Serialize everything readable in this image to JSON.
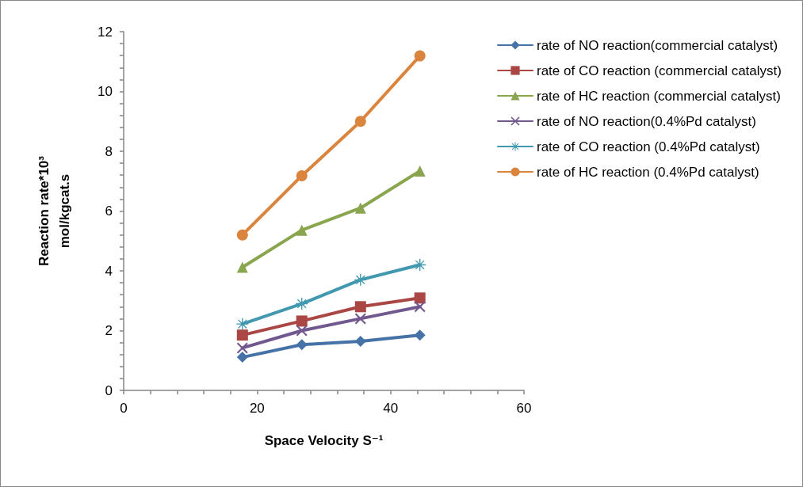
{
  "chart_data": {
    "type": "line",
    "xlabel": "Space Velocity S⁻¹",
    "ylabel": "Reaction rate*10³\nmol/kgcat.s",
    "xlim": [
      0,
      60
    ],
    "xticks": [
      0,
      {
        "value": 4,
        "label": null
      },
      {
        "value": 8,
        "label": null
      },
      {
        "value": 12,
        "label": null
      },
      {
        "value": 16,
        "label": null
      },
      20,
      {
        "value": 24,
        "label": null
      },
      {
        "value": 28,
        "label": null
      },
      {
        "value": 32,
        "label": null
      },
      {
        "value": 36,
        "label": null
      },
      40,
      {
        "value": 44,
        "label": null
      },
      {
        "value": 48,
        "label": null
      },
      {
        "value": 52,
        "label": null
      },
      {
        "value": 56,
        "label": null
      },
      60
    ],
    "ylim": [
      0,
      12
    ],
    "yticks": [
      0,
      {
        "value": 0.4,
        "label": null
      },
      {
        "value": 0.8,
        "label": null
      },
      {
        "value": 1.2,
        "label": null
      },
      {
        "value": 1.6,
        "label": null
      },
      2,
      {
        "value": 2.4,
        "label": null
      },
      {
        "value": 2.8,
        "label": null
      },
      {
        "value": 3.2,
        "label": null
      },
      {
        "value": 3.6,
        "label": null
      },
      4,
      {
        "value": 4.4,
        "label": null
      },
      {
        "value": 4.8,
        "label": null
      },
      {
        "value": 5.2,
        "label": null
      },
      {
        "value": 5.6,
        "label": null
      },
      6,
      {
        "value": 6.4,
        "label": null
      },
      {
        "value": 6.8,
        "label": null
      },
      {
        "value": 7.2,
        "label": null
      },
      {
        "value": 7.6,
        "label": null
      },
      8,
      {
        "value": 8.4,
        "label": null
      },
      {
        "value": 8.8,
        "label": null
      },
      {
        "value": 9.2,
        "label": null
      },
      {
        "value": 9.6,
        "label": null
      },
      10,
      {
        "value": 10.4,
        "label": null
      },
      {
        "value": 10.8,
        "label": null
      },
      {
        "value": 11.2,
        "label": null
      },
      {
        "value": 11.6,
        "label": null
      },
      12
    ],
    "x": [
      17.8,
      26.7,
      35.5,
      44.4
    ],
    "grid": false,
    "legend": "right",
    "line_style": "solid",
    "series": [
      {
        "name": "rate of NO reaction(commercial catalyst)",
        "color": "#4572a7",
        "marker": "diamond",
        "values": [
          1.11,
          1.53,
          1.64,
          1.85
        ]
      },
      {
        "name": "rate of CO reaction (commercial catalyst)",
        "color": "#aa4643",
        "marker": "square",
        "values": [
          1.85,
          2.32,
          2.8,
          3.09
        ]
      },
      {
        "name": "rate of HC reaction (commercial catalyst)",
        "color": "#89a54e",
        "marker": "triangle",
        "values": [
          4.12,
          5.36,
          6.1,
          7.34
        ]
      },
      {
        "name": "rate of NO reaction(0.4%Pd catalyst)",
        "color": "#71588f",
        "marker": "cross",
        "values": [
          1.42,
          2.0,
          2.4,
          2.8
        ]
      },
      {
        "name": "rate of CO reaction (0.4%Pd catalyst)",
        "color": "#4198af",
        "marker": "star",
        "values": [
          2.22,
          2.9,
          3.7,
          4.2
        ]
      },
      {
        "name": "rate of HC reaction (0.4%Pd catalyst)",
        "color": "#db843d",
        "marker": "circle",
        "values": [
          5.2,
          7.18,
          9.0,
          11.19
        ]
      }
    ]
  }
}
